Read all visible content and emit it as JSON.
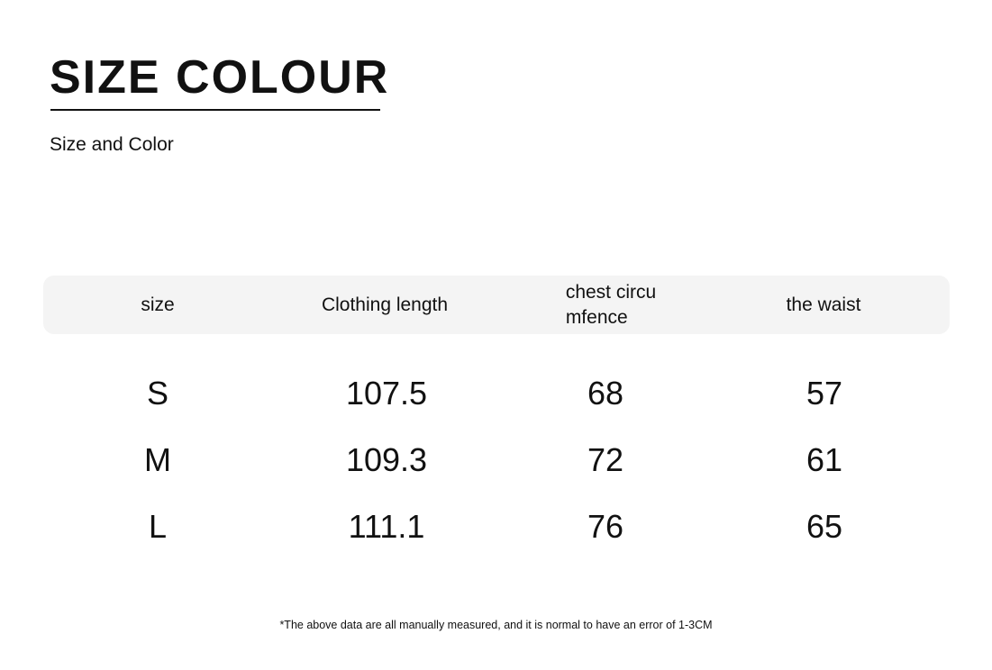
{
  "heading": {
    "title": "SIZE COLOUR",
    "subtitle": "Size and Color"
  },
  "table": {
    "columns": [
      "size",
      "Clothing length",
      "chest circu\nmfence",
      "the waist"
    ],
    "rows": [
      [
        "S",
        "107.5",
        "68",
        "57"
      ],
      [
        "M",
        "109.3",
        "72",
        "61"
      ],
      [
        "L",
        "111.1",
        "76",
        "65"
      ]
    ]
  },
  "footnote": "*The above data are all manually measured, and it is normal to have an error of 1-3CM",
  "colors": {
    "text": "#111111",
    "header_bg": "#f4f4f4"
  }
}
